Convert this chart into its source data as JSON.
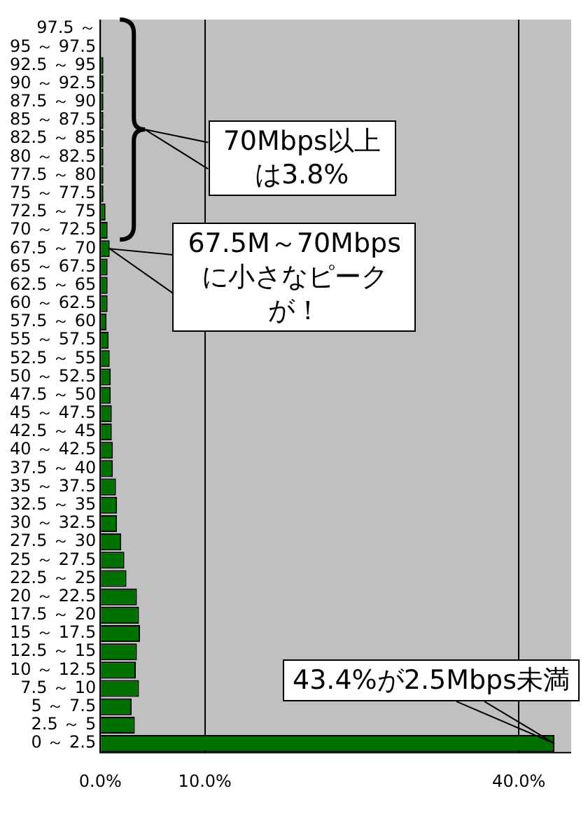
{
  "chart_data": {
    "type": "bar",
    "orientation": "horizontal",
    "categories": [
      "97.5 ～",
      "95 ～ 97.5",
      "92.5 ～ 95",
      "90 ～ 92.5",
      "87.5 ～ 90",
      "85 ～ 87.5",
      "82.5 ～ 85",
      "80 ～ 82.5",
      "77.5 ～ 80",
      "75 ～ 77.5",
      "72.5 ～ 75",
      "70 ～ 72.5",
      "67.5 ～ 70",
      "65 ～ 67.5",
      "62.5 ～ 65",
      "60 ～ 62.5",
      "57.5 ～ 60",
      "55 ～ 57.5",
      "52.5 ～ 55",
      "50 ～ 52.5",
      "47.5 ～ 50",
      "45 ～ 47.5",
      "42.5 ～ 45",
      "40 ～ 42.5",
      "37.5 ～ 40",
      "35 ～ 37.5",
      "32.5 ～ 35",
      "30 ～ 32.5",
      "27.5 ～ 30",
      "25 ～ 27.5",
      "22.5 ～ 25",
      "20 ～ 22.5",
      "17.5 ～ 20",
      "15 ～ 17.5",
      "12.5 ～ 15",
      "10 ～ 12.5",
      "7.5 ～ 10",
      "5 ～ 7.5",
      "2.5 ～ 5",
      "0 ～ 2.5"
    ],
    "values": [
      0,
      0,
      0.3,
      0.3,
      0.3,
      0.3,
      0.3,
      0.3,
      0.3,
      0.3,
      0.5,
      0.7,
      0.9,
      0.7,
      0.7,
      0.7,
      0.6,
      0.8,
      0.9,
      1.0,
      1.0,
      1.1,
      1.1,
      1.2,
      1.2,
      1.5,
      1.6,
      1.6,
      2.0,
      2.3,
      2.5,
      3.5,
      3.7,
      3.8,
      3.5,
      3.4,
      3.7,
      3.0,
      3.3,
      43.4
    ],
    "color": "#007000",
    "xlim": [
      0,
      45
    ],
    "xticks": [
      {
        "value": 0,
        "label": "0.0%"
      },
      {
        "value": 10,
        "label": "10.0%"
      },
      {
        "value": 40,
        "label": "40.0%"
      }
    ],
    "grid": "x",
    "legend": false,
    "annotations": [
      "70Mbps以上は3.8%",
      {
        "text": "67.5M～70Mbpsに小さなピークが！",
        "x": 0.9,
        "y": "67.5 ～ 70"
      },
      {
        "text": "43.4%が2.5Mbps未満",
        "x": 43.4,
        "y": "0 ～ 2.5"
      }
    ]
  }
}
